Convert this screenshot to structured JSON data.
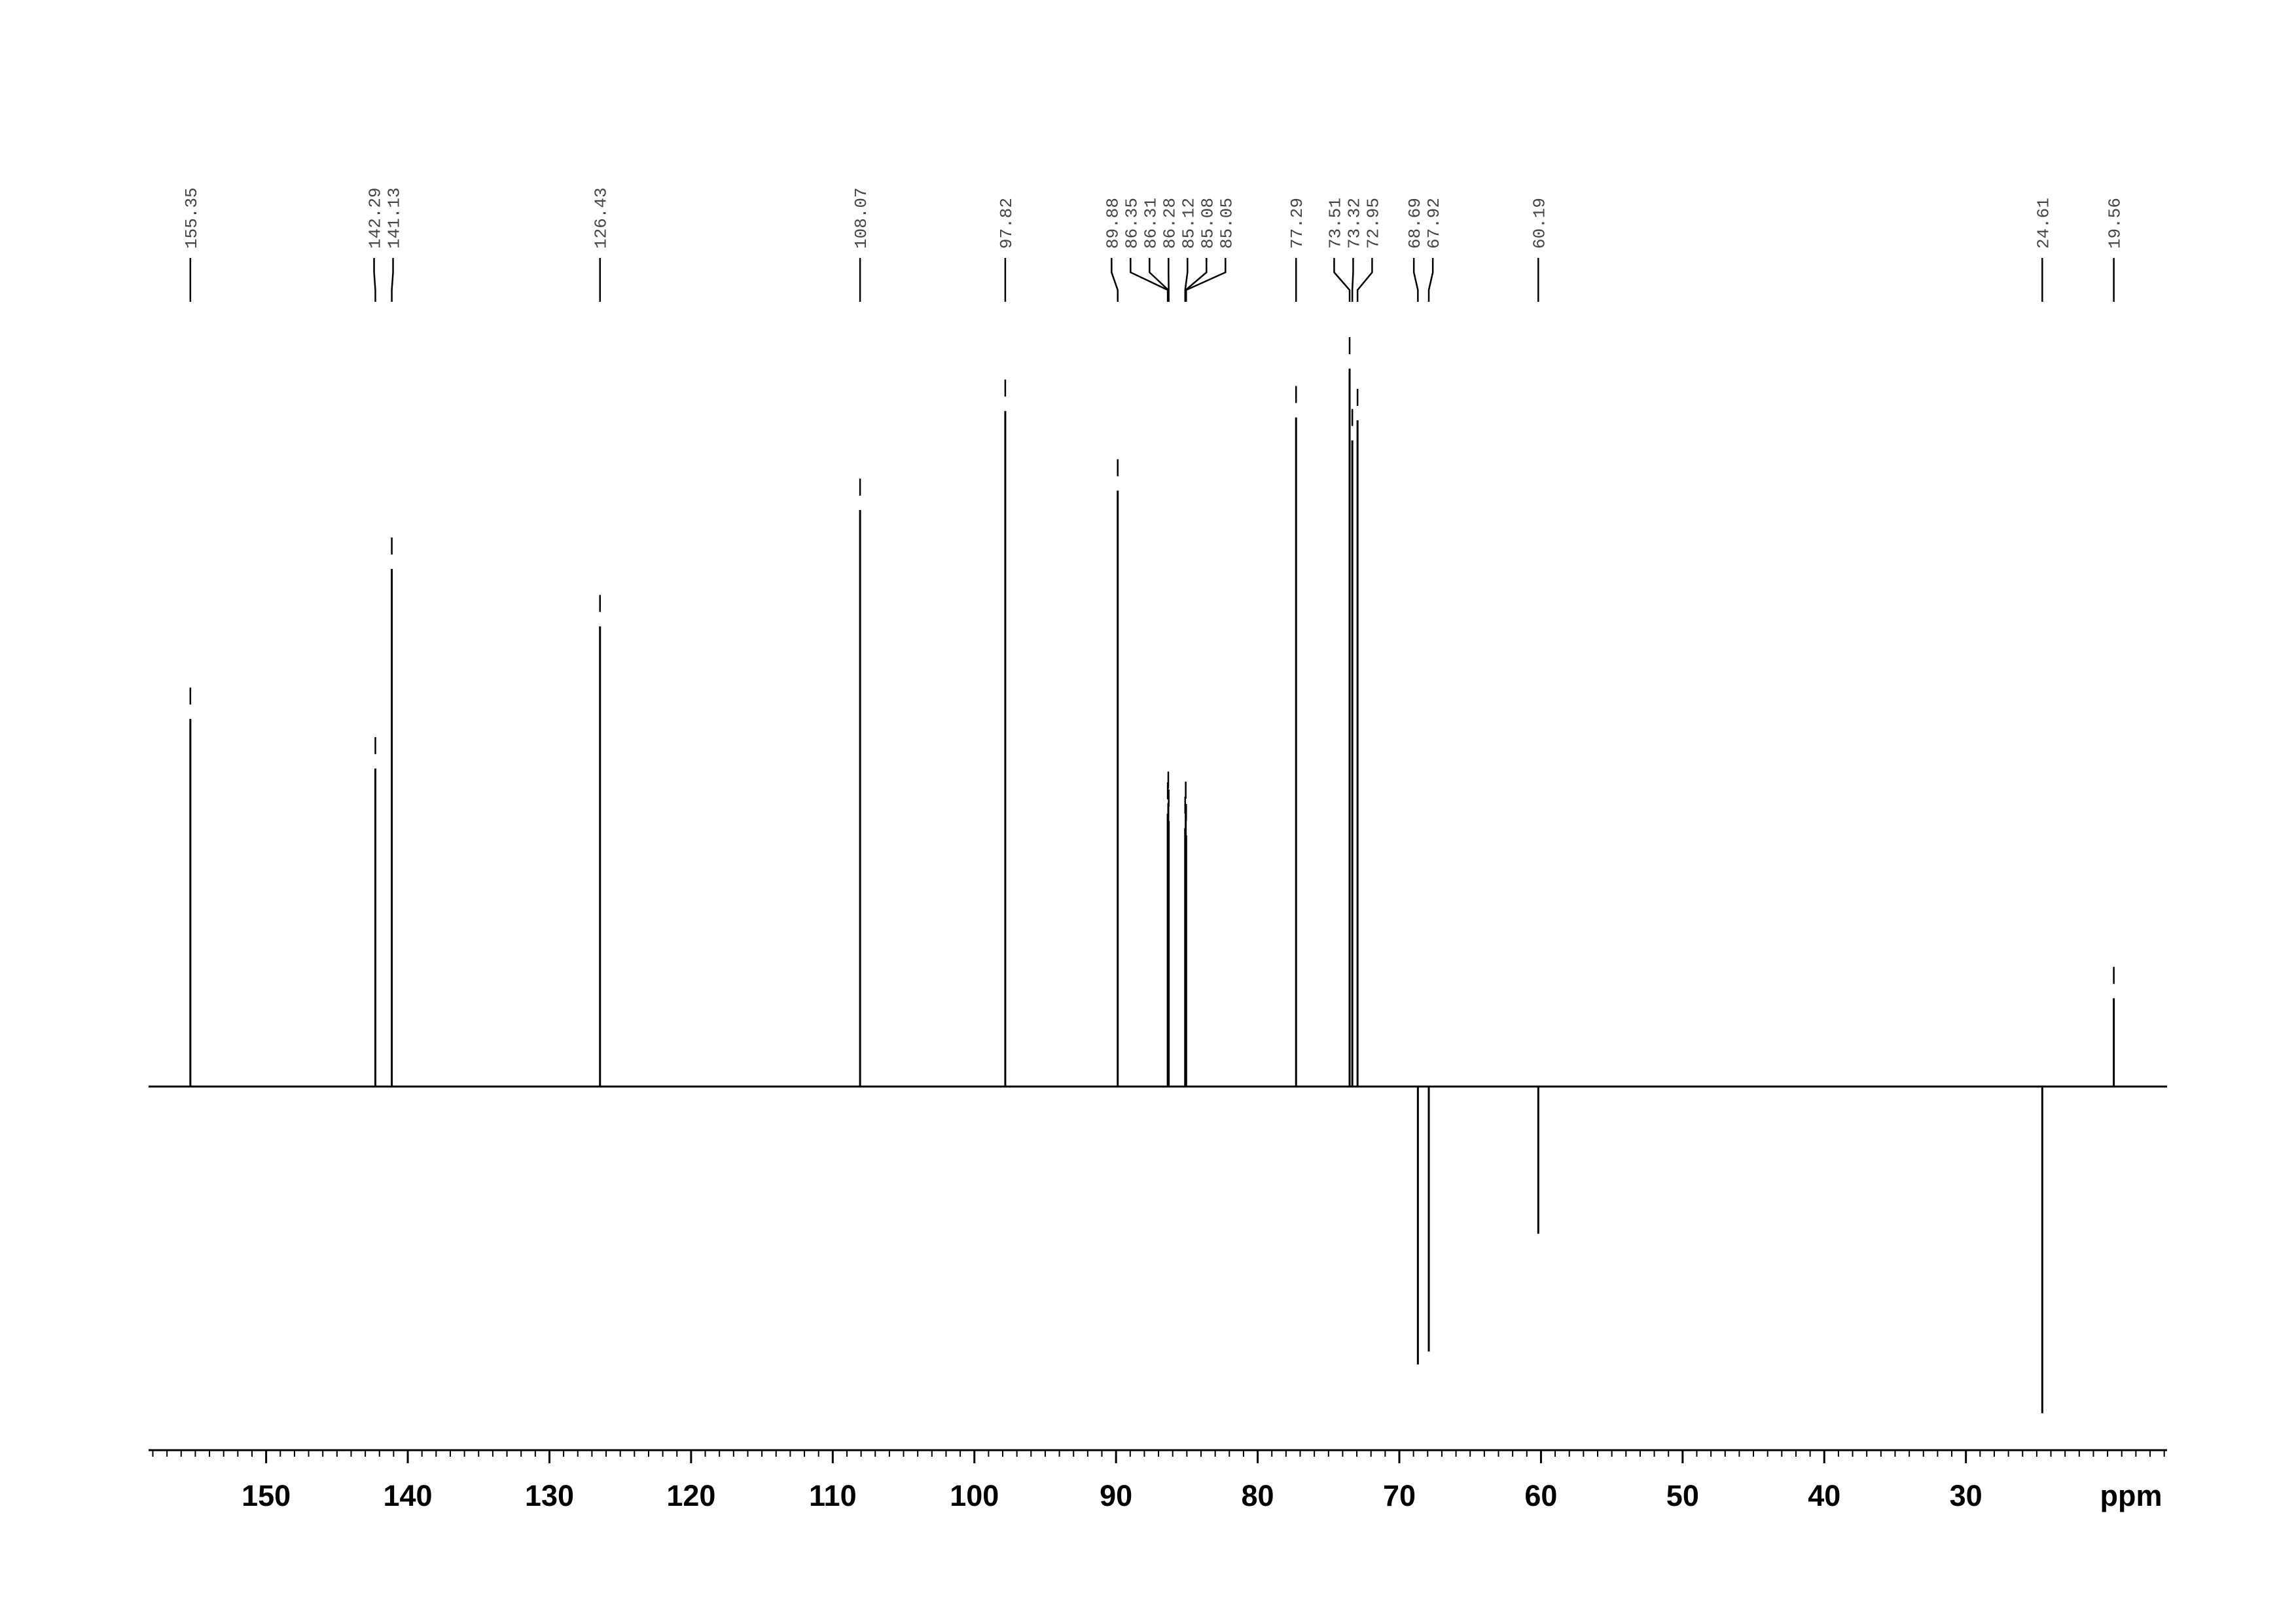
{
  "chart_data": {
    "type": "spectrum",
    "x": [
      155.35,
      142.29,
      141.13,
      126.43,
      108.07,
      97.82,
      89.88,
      86.35,
      86.31,
      86.28,
      85.12,
      85.08,
      85.05,
      77.29,
      73.51,
      73.32,
      72.95,
      68.69,
      67.92,
      60.19,
      24.61,
      19.56
    ],
    "values": [
      51.2,
      44.3,
      72.1,
      64.1,
      80.3,
      94.1,
      83.0,
      38.0,
      39.5,
      37.0,
      36.0,
      38.1,
      35.0,
      93.2,
      100,
      90,
      92.8,
      -38.7,
      -36.9,
      -20.5,
      -45.5,
      12.3
    ],
    "xlim": [
      158.3,
      15.8
    ],
    "xticks": [
      150,
      140,
      130,
      120,
      110,
      100,
      90,
      80,
      70,
      60,
      50,
      40,
      30
    ],
    "ylim": [
      -50,
      130
    ],
    "x_label": "ppm",
    "color": "#000000"
  }
}
